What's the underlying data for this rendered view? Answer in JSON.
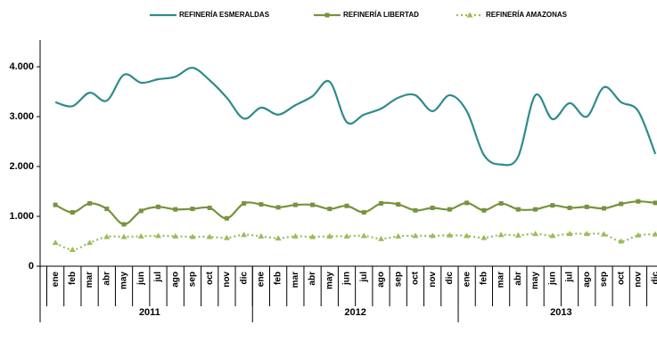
{
  "chart_data": {
    "type": "line",
    "categories": [
      "ene",
      "feb",
      "mar",
      "abr",
      "may",
      "jun",
      "jul",
      "ago",
      "sep",
      "oct",
      "nov",
      "dic",
      "ene",
      "feb",
      "mar",
      "abr",
      "may",
      "jun",
      "jul",
      "ago",
      "sep",
      "oct",
      "nov",
      "dic",
      "ene",
      "feb",
      "mar",
      "abr",
      "may",
      "jun",
      "jul",
      "ago",
      "sep",
      "oct",
      "nov",
      "dic"
    ],
    "groups": [
      "2011",
      "2012",
      "2013"
    ],
    "series": [
      {
        "name": "REFINERÍA ESMERALDAS",
        "color": "#2e8b8b",
        "marker": "none",
        "values": [
          3290,
          3210,
          3480,
          3320,
          3840,
          3680,
          3750,
          3800,
          3980,
          3730,
          3380,
          2960,
          3180,
          3040,
          3230,
          3410,
          3700,
          2890,
          3040,
          3160,
          3380,
          3430,
          3110,
          3430,
          3110,
          2230,
          2040,
          2200,
          3430,
          2950,
          3270,
          3000,
          3590,
          3290,
          3110,
          2250
        ]
      },
      {
        "name": "REFINERÍA LIBERTAD",
        "color": "#77933c",
        "marker": "square",
        "values": [
          1230,
          1080,
          1260,
          1150,
          840,
          1110,
          1190,
          1140,
          1150,
          1170,
          960,
          1260,
          1240,
          1180,
          1230,
          1230,
          1150,
          1210,
          1080,
          1260,
          1240,
          1120,
          1170,
          1140,
          1270,
          1120,
          1260,
          1140,
          1140,
          1220,
          1170,
          1190,
          1160,
          1250,
          1300,
          1270
        ]
      },
      {
        "name": "REFINERÍA AMAZONAS",
        "color": "#9bbb59",
        "marker": "triangle",
        "dashed": true,
        "values": [
          470,
          330,
          470,
          590,
          590,
          600,
          610,
          600,
          590,
          590,
          570,
          630,
          600,
          560,
          600,
          590,
          600,
          600,
          610,
          550,
          600,
          610,
          610,
          620,
          610,
          570,
          630,
          620,
          650,
          610,
          650,
          650,
          640,
          500,
          620,
          640
        ]
      }
    ],
    "ylim": [
      0,
      4000
    ],
    "yticks": [
      0,
      {
        "value": 1000,
        "label": "1.000"
      },
      {
        "value": 2000,
        "label": "2.000"
      },
      {
        "value": 3000,
        "label": "3.000"
      },
      {
        "value": 4000,
        "label": "4.000"
      }
    ],
    "grid": false,
    "legend": "top"
  }
}
